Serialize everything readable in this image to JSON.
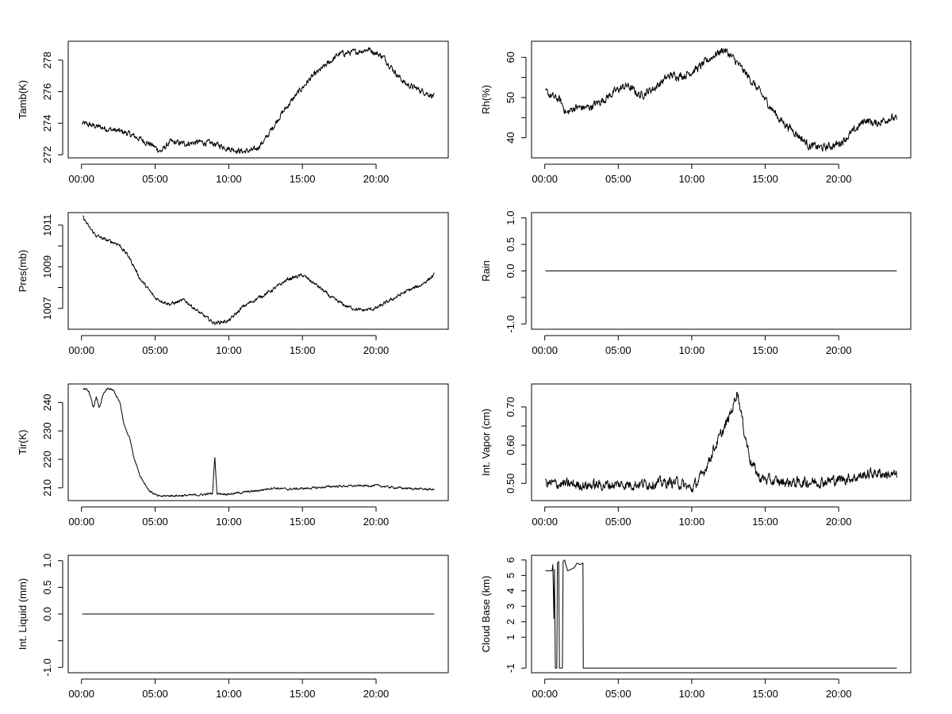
{
  "chart_data": [
    {
      "type": "line",
      "ylabel": "Tamb(K)",
      "ylim": [
        271.8,
        279.2
      ],
      "yticks": [
        272,
        274,
        276,
        278
      ],
      "ytick_labels": [
        "272",
        "274",
        "276",
        "278"
      ],
      "x_ticks": [
        0,
        5,
        10,
        15,
        20
      ],
      "x_tick_labels": [
        "00:00",
        "05:00",
        "10:00",
        "15:00",
        "20:00"
      ],
      "xlim": [
        -0.9,
        24.9
      ],
      "xrange": [
        0.05,
        23.95
      ],
      "noise": 0.15,
      "anchors": [
        [
          0,
          274.0
        ],
        [
          1,
          273.8
        ],
        [
          2,
          273.6
        ],
        [
          3,
          273.4
        ],
        [
          4,
          273.0
        ],
        [
          4.8,
          272.6
        ],
        [
          5.4,
          272.2
        ],
        [
          6,
          272.8
        ],
        [
          7,
          272.7
        ],
        [
          8,
          272.8
        ],
        [
          9,
          272.7
        ],
        [
          10,
          272.4
        ],
        [
          11,
          272.2
        ],
        [
          11.8,
          272.3
        ],
        [
          12.5,
          273.0
        ],
        [
          13.5,
          274.5
        ],
        [
          14.5,
          275.7
        ],
        [
          15.5,
          276.8
        ],
        [
          16.5,
          277.6
        ],
        [
          17.5,
          278.4
        ],
        [
          18.5,
          278.5
        ],
        [
          19.5,
          278.7
        ],
        [
          20.5,
          278.2
        ],
        [
          21.5,
          277.0
        ],
        [
          22,
          276.5
        ],
        [
          23,
          276.1
        ],
        [
          23.95,
          275.7
        ]
      ]
    },
    {
      "type": "line",
      "ylabel": "Rh(%)",
      "ylim": [
        35,
        64
      ],
      "yticks": [
        40,
        45,
        50,
        55,
        60
      ],
      "ytick_labels": [
        "40",
        "",
        "50",
        "",
        "60"
      ],
      "x_ticks": [
        0,
        5,
        10,
        15,
        20
      ],
      "x_tick_labels": [
        "00:00",
        "05:00",
        "10:00",
        "15:00",
        "20:00"
      ],
      "xlim": [
        -0.9,
        24.9
      ],
      "xrange": [
        0.05,
        23.95
      ],
      "noise": 0.8,
      "anchors": [
        [
          0,
          51.5
        ],
        [
          0.6,
          50.0
        ],
        [
          1,
          49.5
        ],
        [
          1.5,
          46.0
        ],
        [
          2,
          47.5
        ],
        [
          3,
          47.5
        ],
        [
          4,
          49.5
        ],
        [
          5,
          52.0
        ],
        [
          5.6,
          53.0
        ],
        [
          6.5,
          50.5
        ],
        [
          7.5,
          52.5
        ],
        [
          8.5,
          55.5
        ],
        [
          9.5,
          55.5
        ],
        [
          10.5,
          57.5
        ],
        [
          11.5,
          60.5
        ],
        [
          12.2,
          62.0
        ],
        [
          13,
          59.0
        ],
        [
          14,
          54.5
        ],
        [
          15,
          49.5
        ],
        [
          16,
          44.5
        ],
        [
          17,
          41.5
        ],
        [
          18,
          38.0
        ],
        [
          19,
          37.5
        ],
        [
          20,
          38.5
        ],
        [
          21,
          41.5
        ],
        [
          21.8,
          44.5
        ],
        [
          22.5,
          43.5
        ],
        [
          23.5,
          45.0
        ],
        [
          23.95,
          44.5
        ]
      ]
    },
    {
      "type": "line",
      "ylabel": "Pres(mb)",
      "ylim": [
        1006.0,
        1011.6
      ],
      "yticks": [
        1007,
        1008,
        1009,
        1010,
        1011
      ],
      "ytick_labels": [
        "1007",
        "",
        "1009",
        "",
        "1011"
      ],
      "x_ticks": [
        0,
        5,
        10,
        15,
        20
      ],
      "x_tick_labels": [
        "00:00",
        "05:00",
        "10:00",
        "15:00",
        "20:00"
      ],
      "xlim": [
        -0.9,
        24.9
      ],
      "xrange": [
        0.1,
        23.95
      ],
      "noise": 0.07,
      "anchors": [
        [
          0.1,
          1011.4
        ],
        [
          0.5,
          1010.9
        ],
        [
          1,
          1010.5
        ],
        [
          1.6,
          1010.3
        ],
        [
          2.5,
          1010.1
        ],
        [
          3.2,
          1009.5
        ],
        [
          4,
          1008.4
        ],
        [
          5,
          1007.5
        ],
        [
          6,
          1007.2
        ],
        [
          7,
          1007.4
        ],
        [
          8,
          1006.8
        ],
        [
          9,
          1006.3
        ],
        [
          10,
          1006.4
        ],
        [
          11,
          1007.1
        ],
        [
          12,
          1007.5
        ],
        [
          13,
          1007.9
        ],
        [
          14,
          1008.4
        ],
        [
          15,
          1008.6
        ],
        [
          16,
          1008.1
        ],
        [
          17,
          1007.5
        ],
        [
          18,
          1007.1
        ],
        [
          19,
          1006.9
        ],
        [
          20,
          1007.0
        ],
        [
          21,
          1007.4
        ],
        [
          22,
          1007.8
        ],
        [
          23,
          1008.1
        ],
        [
          23.95,
          1008.6
        ]
      ]
    },
    {
      "type": "line",
      "ylabel": "Rain",
      "ylim": [
        -1.1,
        1.1
      ],
      "yticks": [
        -1.0,
        -0.5,
        0.0,
        0.5,
        1.0
      ],
      "ytick_labels": [
        "-1.0",
        "",
        "0.0",
        "0.5",
        "1.0"
      ],
      "x_ticks": [
        0,
        5,
        10,
        15,
        20
      ],
      "x_tick_labels": [
        "00:00",
        "05:00",
        "10:00",
        "15:00",
        "20:00"
      ],
      "xlim": [
        -0.9,
        24.9
      ],
      "xrange": [
        0.05,
        23.95
      ],
      "noise": 0,
      "anchors": [
        [
          0.05,
          0.0
        ],
        [
          23.95,
          0.0
        ]
      ]
    },
    {
      "type": "line",
      "ylabel": "Tir(K)",
      "ylim": [
        205.5,
        246.5
      ],
      "yticks": [
        210,
        220,
        230,
        240
      ],
      "ytick_labels": [
        "210",
        "220",
        "230",
        "240"
      ],
      "x_ticks": [
        0,
        5,
        10,
        15,
        20
      ],
      "x_tick_labels": [
        "00:00",
        "05:00",
        "10:00",
        "15:00",
        "20:00"
      ],
      "xlim": [
        -0.9,
        24.9
      ],
      "xrange": [
        0.1,
        23.95
      ],
      "noise": 0.3,
      "anchors": [
        [
          0.1,
          245
        ],
        [
          0.5,
          244
        ],
        [
          0.8,
          238
        ],
        [
          1.0,
          242
        ],
        [
          1.2,
          238
        ],
        [
          1.5,
          243
        ],
        [
          1.8,
          245
        ],
        [
          2.2,
          244
        ],
        [
          2.6,
          240
        ],
        [
          2.9,
          232
        ],
        [
          3.3,
          227
        ],
        [
          3.6,
          220
        ],
        [
          4,
          214
        ],
        [
          4.6,
          209
        ],
        [
          5.2,
          207
        ],
        [
          6,
          207.2
        ],
        [
          7,
          207.3
        ],
        [
          8,
          207.5
        ],
        [
          8.9,
          208
        ],
        [
          9.05,
          221
        ],
        [
          9.2,
          208
        ],
        [
          10,
          207.8
        ],
        [
          12,
          209
        ],
        [
          13,
          210
        ],
        [
          14,
          209.5
        ],
        [
          16,
          210
        ],
        [
          17,
          210.5
        ],
        [
          20,
          210.8
        ],
        [
          21,
          210.2
        ],
        [
          22,
          209.8
        ],
        [
          23.95,
          209.4
        ]
      ]
    },
    {
      "type": "line",
      "ylabel": "Int. Vapor (cm)",
      "ylim": [
        0.455,
        0.76
      ],
      "yticks": [
        0.5,
        0.55,
        0.6,
        0.65,
        0.7
      ],
      "ytick_labels": [
        "0.50",
        "",
        "0.60",
        "",
        "0.70"
      ],
      "x_ticks": [
        0,
        5,
        10,
        15,
        20
      ],
      "x_tick_labels": [
        "00:00",
        "05:00",
        "10:00",
        "15:00",
        "20:00"
      ],
      "xlim": [
        -0.9,
        24.9
      ],
      "xrange": [
        0.05,
        23.95
      ],
      "noise": 0.011,
      "anchors": [
        [
          0,
          0.5
        ],
        [
          3,
          0.495
        ],
        [
          6,
          0.498
        ],
        [
          9,
          0.503
        ],
        [
          10,
          0.485
        ],
        [
          10.7,
          0.52
        ],
        [
          11.5,
          0.59
        ],
        [
          12.3,
          0.65
        ],
        [
          12.8,
          0.7
        ],
        [
          13.1,
          0.745
        ],
        [
          13.5,
          0.65
        ],
        [
          14,
          0.56
        ],
        [
          14.6,
          0.515
        ],
        [
          15.5,
          0.505
        ],
        [
          17,
          0.502
        ],
        [
          19,
          0.505
        ],
        [
          21,
          0.515
        ],
        [
          22.5,
          0.528
        ],
        [
          23.95,
          0.52
        ]
      ]
    },
    {
      "type": "line",
      "ylabel": "Int. Liquid (mm)",
      "ylim": [
        -1.1,
        1.1
      ],
      "yticks": [
        -1.0,
        -0.5,
        0.0,
        0.5,
        1.0
      ],
      "ytick_labels": [
        "-1.0",
        "",
        "0.0",
        "0.5",
        "1.0"
      ],
      "x_ticks": [
        0,
        5,
        10,
        15,
        20
      ],
      "x_tick_labels": [
        "00:00",
        "05:00",
        "10:00",
        "15:00",
        "20:00"
      ],
      "xlim": [
        -0.9,
        24.9
      ],
      "xrange": [
        0.05,
        23.95
      ],
      "noise": 0,
      "anchors": [
        [
          0.05,
          0.0
        ],
        [
          23.95,
          0.0
        ]
      ]
    },
    {
      "type": "line",
      "ylabel": "Cloud Base (km)",
      "ylim": [
        -1.3,
        6.3
      ],
      "yticks": [
        -1,
        1,
        2,
        3,
        4,
        5,
        6
      ],
      "ytick_labels": [
        "-1",
        "1",
        "2",
        "3",
        "4",
        "5",
        "6"
      ],
      "x_ticks": [
        0,
        5,
        10,
        15,
        20
      ],
      "x_tick_labels": [
        "00:00",
        "05:00",
        "10:00",
        "15:00",
        "20:00"
      ],
      "xlim": [
        -0.9,
        24.9
      ],
      "xrange": [
        0.05,
        23.95
      ],
      "noise": 0,
      "anchors": [
        [
          0.05,
          5.3
        ],
        [
          0.5,
          5.3
        ],
        [
          0.55,
          5.7
        ],
        [
          0.62,
          2.2
        ],
        [
          0.66,
          5.4
        ],
        [
          0.72,
          -1
        ],
        [
          0.82,
          -1
        ],
        [
          0.86,
          5.8
        ],
        [
          0.95,
          5.9
        ],
        [
          1.0,
          -1
        ],
        [
          1.2,
          -1
        ],
        [
          1.25,
          5.9
        ],
        [
          1.35,
          6.0
        ],
        [
          1.55,
          5.3
        ],
        [
          1.8,
          5.4
        ],
        [
          2.0,
          5.5
        ],
        [
          2.2,
          5.8
        ],
        [
          2.4,
          5.7
        ],
        [
          2.6,
          5.8
        ],
        [
          2.62,
          -1
        ],
        [
          23.95,
          -1
        ]
      ]
    }
  ]
}
